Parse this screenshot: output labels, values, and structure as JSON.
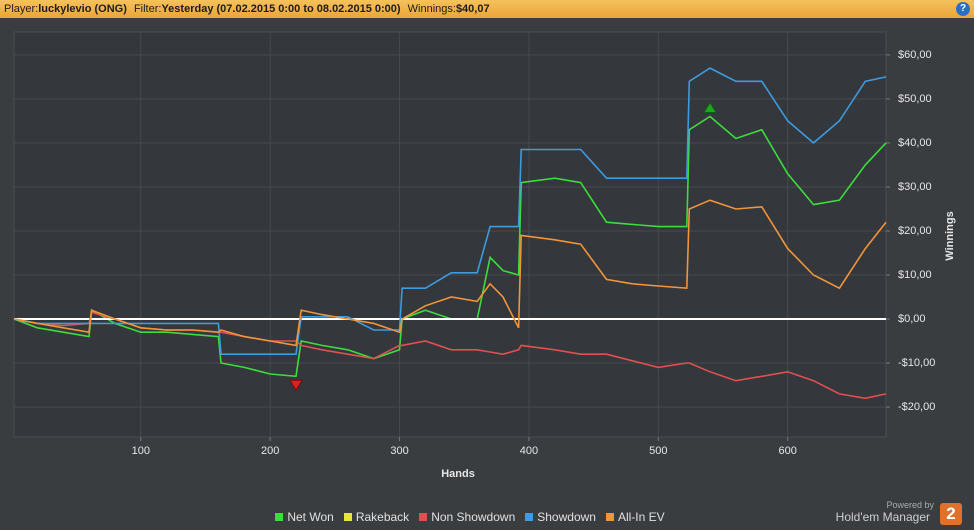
{
  "header": {
    "player_label": "Player:",
    "player": "luckylevio (ONG)",
    "filter_label": "Filter:",
    "filter": "Yesterday (07.02.2015 0:00 to 08.02.2015 0:00)",
    "winnings_label": "Winnings:",
    "winnings": "$40,07",
    "help": "?"
  },
  "footer": {
    "powered_by": "Powered by",
    "brand": "Hold'em Manager",
    "brand_version": "2"
  },
  "chart_data": {
    "type": "line",
    "xlabel": "Hands",
    "ylabel": "Winnings",
    "grid": true,
    "x": [
      2,
      20,
      40,
      60,
      62,
      80,
      100,
      120,
      140,
      160,
      162,
      180,
      200,
      220,
      224,
      240,
      260,
      280,
      300,
      302,
      320,
      340,
      360,
      370,
      380,
      392,
      394,
      420,
      440,
      460,
      480,
      500,
      522,
      524,
      540,
      560,
      580,
      600,
      620,
      640,
      660,
      676
    ],
    "xlim": [
      2,
      676
    ],
    "xticks": [
      100,
      200,
      300,
      400,
      500,
      600
    ],
    "ylim": [
      -26.8,
      65.2
    ],
    "yticks": [
      {
        "value": -20,
        "label": "-$20,00"
      },
      {
        "value": -10,
        "label": "-$10,00"
      },
      {
        "value": 0,
        "label": "$0,00"
      },
      {
        "value": 10,
        "label": "$10,00"
      },
      {
        "value": 20,
        "label": "$20,00"
      },
      {
        "value": 30,
        "label": "$30,00"
      },
      {
        "value": 40,
        "label": "$40,00"
      },
      {
        "value": 50,
        "label": "$50,00"
      },
      {
        "value": 60,
        "label": "$60,00"
      }
    ],
    "series": [
      {
        "name": "Net Won",
        "color": "#3ddc3d",
        "values": [
          0,
          -2,
          -3,
          -4,
          2,
          -1,
          -3,
          -3,
          -3.5,
          -4,
          -10,
          -11,
          -12.5,
          -13,
          -5,
          -6,
          -7,
          -9,
          -7,
          0,
          2,
          0,
          0,
          14,
          11,
          10,
          31,
          32,
          31,
          22,
          21.5,
          21,
          21,
          43,
          46,
          41,
          43,
          33,
          26,
          27,
          35,
          40
        ]
      },
      {
        "name": "Rakeback",
        "color": "#e6e640",
        "values": [
          0,
          0,
          0,
          0,
          0,
          0,
          0,
          0,
          0,
          0,
          0,
          0,
          0,
          0,
          0,
          0,
          0,
          0,
          0,
          0,
          0,
          0,
          0,
          0,
          0,
          0,
          0,
          0,
          0,
          0,
          0,
          0,
          0,
          0,
          0,
          0,
          0,
          0,
          0,
          0,
          0,
          0
        ]
      },
      {
        "name": "Non Showdown",
        "color": "#e05050",
        "values": [
          0,
          -1,
          -1.5,
          -1,
          1.5,
          0,
          -2,
          -2.5,
          -2.5,
          -3,
          -3,
          -4,
          -5,
          -5,
          -6,
          -7,
          -8,
          -9,
          -6,
          -6,
          -5,
          -7,
          -7,
          -7.5,
          -8,
          -7,
          -6,
          -7,
          -8,
          -8,
          -9.5,
          -11,
          -10,
          -10,
          -12,
          -14,
          -13,
          -12,
          -14,
          -17,
          -18,
          -17
        ]
      },
      {
        "name": "Showdown",
        "color": "#3d9be0",
        "values": [
          0,
          -1,
          -1,
          -1,
          -1,
          -1,
          -1,
          -1,
          -1,
          -1,
          -8,
          -8,
          -8,
          -8,
          0.5,
          0.5,
          0.5,
          -2.5,
          -2.5,
          7,
          7,
          10.5,
          10.5,
          21,
          21,
          21,
          38.5,
          38.5,
          38.5,
          32,
          32,
          32,
          32,
          54,
          57,
          54,
          54,
          45,
          40,
          45,
          54,
          55
        ]
      },
      {
        "name": "All-In EV",
        "color": "#f0953a",
        "values": [
          0,
          -1,
          -2,
          -3,
          2,
          0,
          -2,
          -2.5,
          -2.5,
          -3,
          -2.5,
          -4,
          -5,
          -6,
          2,
          1,
          0,
          -1,
          -3,
          0,
          3,
          5,
          4,
          8,
          5,
          -2,
          19,
          18,
          17,
          9,
          8,
          7.5,
          7,
          25,
          27,
          25,
          25.5,
          16,
          10,
          7,
          16,
          22
        ]
      }
    ]
  }
}
